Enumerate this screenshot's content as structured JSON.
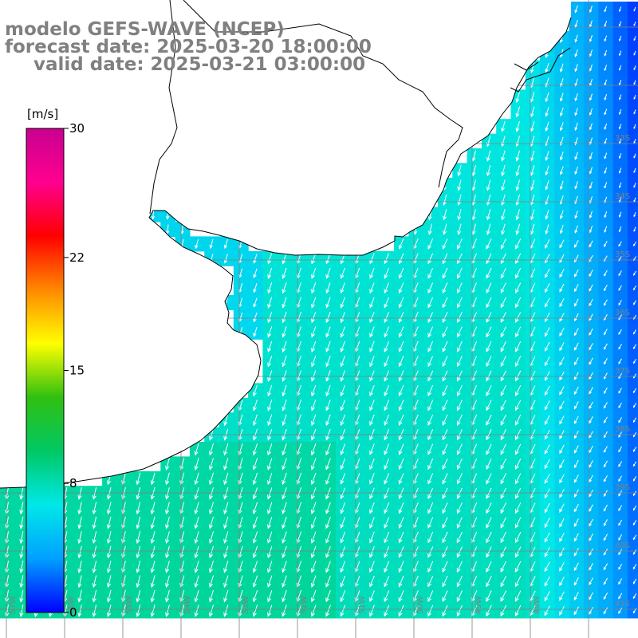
{
  "title": {
    "line1": "modelo GEFS-WAVE (NCEP)",
    "line2": "forecast date: 2025-03-20 18:00:00",
    "line3": "valid date: 2025-03-21 03:00:00"
  },
  "colorbar": {
    "unit": "[m/s]",
    "ticks": [
      "30",
      "22",
      "15",
      "8",
      "0"
    ],
    "tick_values": [
      30,
      22,
      15,
      8,
      0
    ],
    "range": [
      0,
      30
    ],
    "stops": [
      "#0000ff",
      "#00a0ff",
      "#00e8e8",
      "#00c864",
      "#30c010",
      "#ffff00",
      "#ff8800",
      "#ff0000",
      "#ff0090",
      "#c80090"
    ]
  },
  "lat_labels": [
    "33S",
    "34S",
    "35S",
    "36S",
    "37S",
    "38S",
    "39S",
    "40S",
    "41S"
  ],
  "lon_labels": [
    "57W",
    "56W",
    "55W",
    "54W",
    "53W",
    "52W",
    "51W",
    "50W",
    "49W",
    "48W"
  ],
  "colors": {
    "land": "#ffffff",
    "grid": "#808080",
    "coast": "#000000",
    "arrows": "#ffffff",
    "label": "#808080"
  }
}
